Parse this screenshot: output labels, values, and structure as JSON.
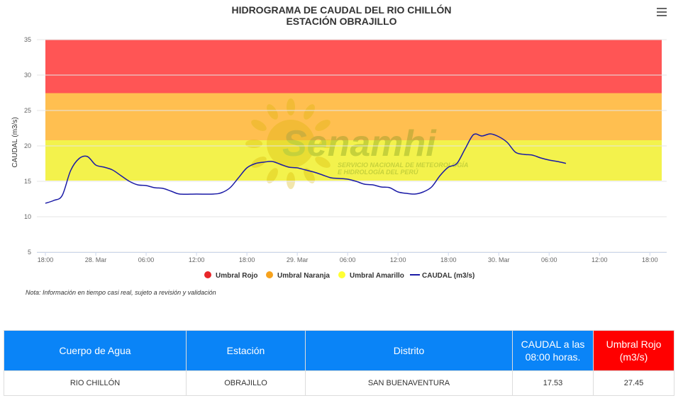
{
  "header": {
    "title_line1": "HIDROGRAMA DE CAUDAL DEL RIO CHILLÓN",
    "title_line2": "ESTACIÓN OBRAJILLO"
  },
  "watermark": {
    "name": "Senamhi",
    "line1": "SERVICIO NACIONAL DE METEOROLOGÍA",
    "line2": "E HIDROLOGÍA DEL PERÚ"
  },
  "colors": {
    "rojo": "#ff5555",
    "naranja": "#ffbf50",
    "amarillo": "#f3f24c",
    "line": "#1a1aa6",
    "legend_rojo": "#e8262a",
    "legend_naranja": "#f6a21d",
    "legend_amarillo": "#ffff33",
    "table_header": "#0a84f7",
    "table_header_red": "#ff0000"
  },
  "chart_data": {
    "type": "line",
    "title": "HIDROGRAMA DE CAUDAL DEL RIO CHILLÓN",
    "subtitle": "ESTACIÓN OBRAJILLO",
    "ylabel": "CAUDAL (m3/s)",
    "xlabel": "",
    "ylim": [
      5,
      35
    ],
    "yticks": [
      "5",
      "10",
      "15",
      "20",
      "25",
      "30",
      "35"
    ],
    "xlim": [
      "2025-03-27T18:00",
      "2025-03-30T20:00"
    ],
    "xticks": [
      {
        "x": "2025-03-27T18:00",
        "label": "18:00"
      },
      {
        "x": "2025-03-28T00:00",
        "label": "28. Mar"
      },
      {
        "x": "2025-03-28T06:00",
        "label": "06:00"
      },
      {
        "x": "2025-03-28T12:00",
        "label": "12:00"
      },
      {
        "x": "2025-03-28T18:00",
        "label": "18:00"
      },
      {
        "x": "2025-03-29T00:00",
        "label": "29. Mar"
      },
      {
        "x": "2025-03-29T06:00",
        "label": "06:00"
      },
      {
        "x": "2025-03-29T12:00",
        "label": "12:00"
      },
      {
        "x": "2025-03-29T18:00",
        "label": "18:00"
      },
      {
        "x": "2025-03-30T00:00",
        "label": "30. Mar"
      },
      {
        "x": "2025-03-30T06:00",
        "label": "06:00"
      },
      {
        "x": "2025-03-30T12:00",
        "label": "12:00"
      },
      {
        "x": "2025-03-30T18:00",
        "label": "18:00"
      }
    ],
    "grid": true,
    "legend_position": "bottom",
    "bands": [
      {
        "name": "Umbral Rojo",
        "from": 27.45,
        "to": 35
      },
      {
        "name": "Umbral Naranja",
        "from": 20.8,
        "to": 27.45
      },
      {
        "name": "Umbral Amarillo",
        "from": 15.1,
        "to": 20.8
      }
    ],
    "series": [
      {
        "name": "CAUDAL (m3/s)",
        "x": [
          "2025-03-27T18:00",
          "2025-03-27T19:00",
          "2025-03-27T20:00",
          "2025-03-27T21:00",
          "2025-03-27T22:00",
          "2025-03-27T23:00",
          "2025-03-28T00:00",
          "2025-03-28T01:00",
          "2025-03-28T02:00",
          "2025-03-28T03:00",
          "2025-03-28T04:00",
          "2025-03-28T05:00",
          "2025-03-28T06:00",
          "2025-03-28T07:00",
          "2025-03-28T08:00",
          "2025-03-28T09:00",
          "2025-03-28T10:00",
          "2025-03-28T12:00",
          "2025-03-28T14:00",
          "2025-03-28T15:00",
          "2025-03-28T16:00",
          "2025-03-28T17:00",
          "2025-03-28T18:00",
          "2025-03-28T19:00",
          "2025-03-28T20:00",
          "2025-03-28T21:00",
          "2025-03-28T22:00",
          "2025-03-28T23:00",
          "2025-03-29T00:00",
          "2025-03-29T01:00",
          "2025-03-29T02:00",
          "2025-03-29T03:00",
          "2025-03-29T04:00",
          "2025-03-29T05:00",
          "2025-03-29T06:00",
          "2025-03-29T07:00",
          "2025-03-29T08:00",
          "2025-03-29T09:00",
          "2025-03-29T10:00",
          "2025-03-29T11:00",
          "2025-03-29T12:00",
          "2025-03-29T13:00",
          "2025-03-29T14:00",
          "2025-03-29T15:00",
          "2025-03-29T16:00",
          "2025-03-29T17:00",
          "2025-03-29T18:00",
          "2025-03-29T19:00",
          "2025-03-29T20:00",
          "2025-03-29T21:00",
          "2025-03-29T22:00",
          "2025-03-29T23:00",
          "2025-03-30T00:00",
          "2025-03-30T01:00",
          "2025-03-30T02:00",
          "2025-03-30T03:00",
          "2025-03-30T04:00",
          "2025-03-30T05:00",
          "2025-03-30T06:00",
          "2025-03-30T07:00",
          "2025-03-30T08:00"
        ],
        "values": [
          11.9,
          12.3,
          13.0,
          16.5,
          18.2,
          18.5,
          17.3,
          17.0,
          16.6,
          15.8,
          15.0,
          14.5,
          14.4,
          14.1,
          14.0,
          13.6,
          13.2,
          13.2,
          13.2,
          13.4,
          14.1,
          15.5,
          16.9,
          17.5,
          17.7,
          17.8,
          17.4,
          17.0,
          16.9,
          16.6,
          16.3,
          15.9,
          15.5,
          15.4,
          15.3,
          15.0,
          14.6,
          14.5,
          14.2,
          14.1,
          13.5,
          13.3,
          13.2,
          13.5,
          14.2,
          15.8,
          17.0,
          17.5,
          19.6,
          21.6,
          21.4,
          21.7,
          21.3,
          20.5,
          19.1,
          18.8,
          18.7,
          18.3,
          18.0,
          17.8,
          17.53
        ]
      }
    ]
  },
  "legend": {
    "rojo": "Umbral Rojo",
    "naranja": "Umbral Naranja",
    "amarillo": "Umbral Amarillo",
    "caudal": "CAUDAL (m3/s)"
  },
  "note": "Nota: Información en tiempo casi real, sujeto a revisión y validación",
  "table": {
    "headers": {
      "cuerpo": "Cuerpo de Agua",
      "estacion": "Estación",
      "distrito": "Distrito",
      "caudal": "CAUDAL a las 08:00 horas.",
      "umbral": "Umbral Rojo (m3/s)"
    },
    "row": {
      "cuerpo": "RIO CHILLÓN",
      "estacion": "OBRAJILLO",
      "distrito": "SAN BUENAVENTURA",
      "caudal": "17.53",
      "umbral": "27.45"
    }
  }
}
